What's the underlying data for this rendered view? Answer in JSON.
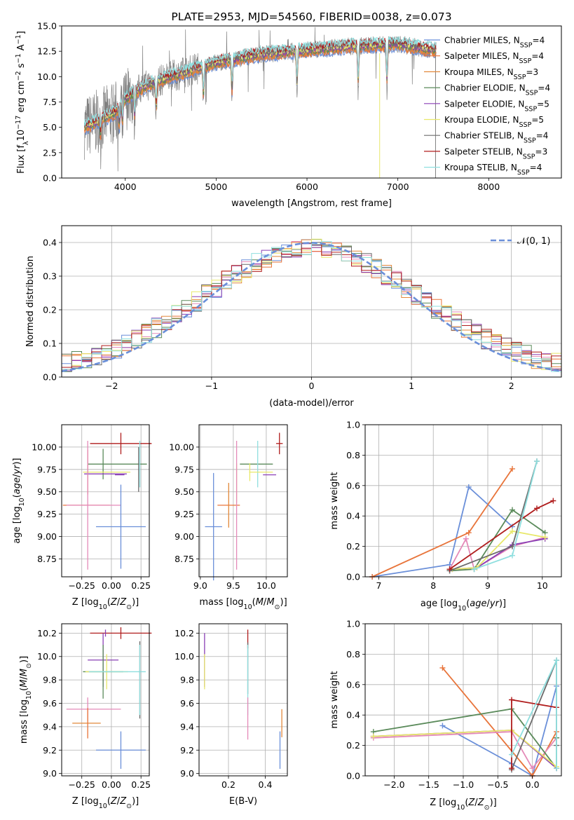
{
  "colors": {
    "chabrier_miles": "#6a8fd9",
    "salpeter_miles": "#e8743a",
    "kroupa_miles": "#e2883a",
    "chabrier_elodie": "#5a8a5a",
    "salpeter_elodie": "#8a3fb5",
    "kroupa_elodie": "#e8e86a",
    "chabrier_stelib": "#6b6b6b",
    "salpeter_stelib": "#b01d1d",
    "kroupa_stelib": "#8fdfdf",
    "data": "#808080",
    "normal": "#6a8fd9",
    "pink": "#e48ab8",
    "grid": "#b0b0b0"
  },
  "chart_data": [
    {
      "id": "spectrum",
      "type": "line",
      "title": "PLATE=2953, MJD=54560, FIBERID=0038, z=0.073",
      "xlabel": "wavelength [Angstrom, rest frame]",
      "ylabel": "Flux [f_λ 10^-17 erg cm^-2 s^-1 A^-1]",
      "xlim": [
        3300,
        8800
      ],
      "ylim": [
        0,
        15
      ],
      "xticks": [
        "4000",
        "5000",
        "6000",
        "7000",
        "8000"
      ],
      "yticks": [
        "0.0",
        "2.5",
        "5.0",
        "7.5",
        "10.0",
        "12.5",
        "15.0"
      ],
      "grid": false,
      "legend_position": "right",
      "data_range": [
        3550,
        7420
      ],
      "continuum_knots": [
        [
          3550,
          5.0
        ],
        [
          3700,
          5.6
        ],
        [
          3900,
          6.5
        ],
        [
          4000,
          7.8
        ],
        [
          4200,
          9.0
        ],
        [
          4500,
          10.0
        ],
        [
          5000,
          11.4
        ],
        [
          5500,
          12.2
        ],
        [
          6000,
          12.6
        ],
        [
          6500,
          13.0
        ],
        [
          7000,
          13.2
        ],
        [
          7420,
          12.6
        ]
      ],
      "legend": [
        {
          "name": "Chabrier MILES, N",
          "sub": "SSP",
          "tail": "=4",
          "color": "#6a8fd9"
        },
        {
          "name": "Salpeter MILES, N",
          "sub": "SSP",
          "tail": "=4",
          "color": "#e8743a"
        },
        {
          "name": "Kroupa MILES, N",
          "sub": "SSP",
          "tail": "=3",
          "color": "#e2883a"
        },
        {
          "name": "Chabrier ELODIE, N",
          "sub": "SSP",
          "tail": "=4",
          "color": "#5a8a5a"
        },
        {
          "name": "Salpeter ELODIE, N",
          "sub": "SSP",
          "tail": "=5",
          "color": "#8a3fb5"
        },
        {
          "name": "Kroupa ELODIE, N",
          "sub": "SSP",
          "tail": "=5",
          "color": "#e8e86a"
        },
        {
          "name": "Chabrier STELIB, N",
          "sub": "SSP",
          "tail": "=4",
          "color": "#6b6b6b"
        },
        {
          "name": "Salpeter STELIB, N",
          "sub": "SSP",
          "tail": "=3",
          "color": "#b01d1d"
        },
        {
          "name": "Kroupa STELIB, N",
          "sub": "SSP",
          "tail": "=4",
          "color": "#8fdfdf"
        }
      ]
    },
    {
      "id": "residuals",
      "type": "histogram",
      "xlabel": "(data-model)/error",
      "ylabel": "Normed distribution",
      "xlim": [
        -2.5,
        2.5
      ],
      "ylim": [
        0,
        0.45
      ],
      "xticks": [
        "−2",
        "−1",
        "0",
        "1",
        "2"
      ],
      "yticks": [
        "0.0",
        "0.1",
        "0.2",
        "0.3",
        "0.4"
      ],
      "grid": true,
      "legend_position": "top-right",
      "legend_label": "𝒩(0, 1)",
      "bin_width": 0.1,
      "series_colors": [
        "#6a8fd9",
        "#e48ab8",
        "#e8743a",
        "#e2883a",
        "#5a8a5a",
        "#8a3fb5",
        "#e8e86a",
        "#6b6b6b",
        "#b01d1d",
        "#8fdfdf"
      ]
    },
    {
      "id": "age_vs_Z",
      "type": "errorbar",
      "xlabel": "Z [log10(Z/Z⊙)]",
      "ylabel": "age [log10(age/yr)]",
      "xlim": [
        -0.42,
        0.32
      ],
      "ylim": [
        8.55,
        10.25
      ],
      "xticks": [
        -0.25,
        0.0,
        0.25
      ],
      "xtick_labels": [
        "−0.25",
        "0.00",
        "0.25"
      ],
      "yticks": [
        8.75,
        9.0,
        9.25,
        9.5,
        9.75,
        10.0
      ],
      "ytick_labels": [
        "8.75",
        "9.00",
        "9.25",
        "9.50",
        "9.75",
        "10.00"
      ],
      "points": [
        {
          "x": 0.08,
          "y": 10.04,
          "xerr": 0.26,
          "yerr": 0.12,
          "color": "#b01d1d"
        },
        {
          "x": 0.05,
          "y": 9.81,
          "xerr": 0.25,
          "yerr": 0.0,
          "color": "#5a8a5a"
        },
        {
          "x": -0.07,
          "y": 9.81,
          "xerr": 0.0,
          "yerr": 0.17,
          "color": "#5a8a5a"
        },
        {
          "x": -0.2,
          "y": 9.72,
          "xerr": 0.0,
          "yerr": 0.25,
          "color": "#e2883a"
        },
        {
          "x": -0.04,
          "y": 9.72,
          "xerr": 0.2,
          "yerr": 0.0,
          "color": "#e8e86a"
        },
        {
          "x": -0.05,
          "y": 9.7,
          "xerr": 0.18,
          "yerr": 0.0,
          "color": "#8a3fb5"
        },
        {
          "x": 0.07,
          "y": 9.69,
          "xerr": 0.04,
          "yerr": 0.0,
          "color": "#8a3fb5"
        },
        {
          "x": 0.24,
          "y": 9.81,
          "xerr": 0.0,
          "yerr": 0.26,
          "color": "#8fdfdf"
        },
        {
          "x": 0.23,
          "y": 9.75,
          "xerr": 0.0,
          "yerr": 0.25,
          "color": "#6b6b6b"
        },
        {
          "x": -0.21,
          "y": 9.35,
          "xerr": 0.2,
          "yerr": 0.0,
          "color": "#e8743a"
        },
        {
          "x": -0.15,
          "y": 9.35,
          "xerr": 0.23,
          "yerr": 0.0,
          "color": "#e48ab8"
        },
        {
          "x": -0.2,
          "y": 9.35,
          "xerr": 0.0,
          "yerr": 0.72,
          "color": "#e48ab8"
        },
        {
          "x": 0.08,
          "y": 9.11,
          "xerr": 0.21,
          "yerr": 0.47,
          "color": "#6a8fd9"
        }
      ]
    },
    {
      "id": "age_vs_mass",
      "type": "errorbar",
      "xlabel": "mass [log10(M/M⊙)]",
      "ylabel": "",
      "xlim": [
        8.98,
        10.32
      ],
      "ylim": [
        8.55,
        10.25
      ],
      "xticks": [
        9.0,
        9.5,
        10.0
      ],
      "xtick_labels": [
        "9.0",
        "9.5",
        "10.0"
      ],
      "yticks": [
        8.75,
        9.0,
        9.25,
        9.5,
        9.75,
        10.0
      ],
      "ytick_labels": [
        "8.75",
        "9.00",
        "9.25",
        "9.50",
        "9.75",
        "10.00"
      ],
      "points": [
        {
          "x": 10.2,
          "y": 10.04,
          "xerr": 0.05,
          "yerr": 0.12,
          "color": "#b01d1d"
        },
        {
          "x": 9.85,
          "y": 9.81,
          "xerr": 0.25,
          "yerr": 0.0,
          "color": "#5a8a5a"
        },
        {
          "x": 9.87,
          "y": 9.81,
          "xerr": 0.0,
          "yerr": 0.26,
          "color": "#8fdfdf"
        },
        {
          "x": 9.92,
          "y": 9.72,
          "xerr": 0.18,
          "yerr": 0.0,
          "color": "#e8e86a"
        },
        {
          "x": 10.05,
          "y": 9.69,
          "xerr": 0.1,
          "yerr": 0.0,
          "color": "#8a3fb5"
        },
        {
          "x": 9.75,
          "y": 9.72,
          "xerr": 0.0,
          "yerr": 0.1,
          "color": "#e8e86a"
        },
        {
          "x": 9.55,
          "y": 9.6,
          "xerr": 0.0,
          "yerr": 0.22,
          "color": "#e8e86a"
        },
        {
          "x": 9.43,
          "y": 9.35,
          "xerr": 0.17,
          "yerr": 0.0,
          "color": "#e8743a"
        },
        {
          "x": 9.43,
          "y": 9.35,
          "xerr": 0.0,
          "yerr": 0.25,
          "color": "#e2883a"
        },
        {
          "x": 9.55,
          "y": 9.35,
          "xerr": 0.0,
          "yerr": 0.72,
          "color": "#e48ab8"
        },
        {
          "x": 9.2,
          "y": 9.11,
          "xerr": 0.13,
          "yerr": 0.6,
          "color": "#6a8fd9"
        }
      ]
    },
    {
      "id": "massweight_vs_age",
      "type": "line",
      "xlabel": "age [log10(age/yr)]",
      "ylabel": "mass weight",
      "xlim": [
        6.75,
        10.35
      ],
      "ylim": [
        0,
        1.0
      ],
      "xticks": [
        7,
        8,
        9,
        10
      ],
      "xtick_labels": [
        "7",
        "8",
        "9",
        "10"
      ],
      "yticks": [
        0.0,
        0.2,
        0.4,
        0.6,
        0.8,
        1.0
      ],
      "ytick_labels": [
        "0.0",
        "0.2",
        "0.4",
        "0.6",
        "0.8",
        "1.0"
      ],
      "grid": true,
      "series": [
        {
          "color": "#6a8fd9",
          "x": [
            6.88,
            8.3,
            8.65,
            9.45
          ],
          "y": [
            0.0,
            0.08,
            0.59,
            0.33
          ]
        },
        {
          "color": "#e8743a",
          "x": [
            6.88,
            8.65,
            9.45
          ],
          "y": [
            0.0,
            0.29,
            0.71
          ]
        },
        {
          "color": "#e48ab8",
          "x": [
            8.3,
            8.6,
            8.75,
            9.45,
            10.05
          ],
          "y": [
            0.05,
            0.25,
            0.05,
            0.2,
            0.26
          ]
        },
        {
          "color": "#5a8a5a",
          "x": [
            8.3,
            8.75,
            9.45,
            10.05
          ],
          "y": [
            0.04,
            0.05,
            0.44,
            0.29
          ]
        },
        {
          "color": "#8a3fb5",
          "x": [
            8.35,
            8.8,
            9.45,
            10.05
          ],
          "y": [
            0.05,
            0.06,
            0.21,
            0.25
          ]
        },
        {
          "color": "#e8e86a",
          "x": [
            8.35,
            8.8,
            9.45,
            10.05
          ],
          "y": [
            0.05,
            0.06,
            0.3,
            0.26
          ]
        },
        {
          "color": "#6b6b6b",
          "x": [
            8.3,
            9.45,
            9.9
          ],
          "y": [
            0.04,
            0.2,
            0.76
          ]
        },
        {
          "color": "#b01d1d",
          "x": [
            8.3,
            9.9,
            10.2
          ],
          "y": [
            0.05,
            0.45,
            0.5
          ]
        },
        {
          "color": "#8fdfdf",
          "x": [
            8.75,
            9.45,
            9.9
          ],
          "y": [
            0.05,
            0.14,
            0.76
          ]
        }
      ]
    },
    {
      "id": "mass_vs_Z",
      "type": "errorbar",
      "xlabel": "Z [log10(Z/Z⊙)]",
      "ylabel": "mass [log10(M/M⊙)]",
      "xlim": [
        -0.42,
        0.32
      ],
      "ylim": [
        8.98,
        10.28
      ],
      "xticks": [
        -0.25,
        0.0,
        0.25
      ],
      "xtick_labels": [
        "−0.25",
        "0.00",
        "0.25"
      ],
      "yticks": [
        9.0,
        9.2,
        9.4,
        9.6,
        9.8,
        10.0,
        10.2
      ],
      "ytick_labels": [
        "9.0",
        "9.2",
        "9.4",
        "9.6",
        "9.8",
        "10.0",
        "10.2"
      ],
      "points": [
        {
          "x": 0.08,
          "y": 10.2,
          "xerr": 0.26,
          "yerr": 0.05,
          "color": "#b01d1d"
        },
        {
          "x": -0.05,
          "y": 10.2,
          "xerr": 0.0,
          "yerr": 0.0,
          "color": "#8a3fb5"
        },
        {
          "x": -0.07,
          "y": 9.97,
          "xerr": 0.13,
          "yerr": 0.23,
          "color": "#8a3fb5"
        },
        {
          "x": -0.07,
          "y": 9.87,
          "xerr": 0.17,
          "yerr": 0.23,
          "color": "#5a8a5a"
        },
        {
          "x": -0.04,
          "y": 9.87,
          "xerr": 0.18,
          "yerr": 0.15,
          "color": "#e8e86a"
        },
        {
          "x": 0.05,
          "y": 9.87,
          "xerr": 0.24,
          "yerr": 0.0,
          "color": "#8fdfdf"
        },
        {
          "x": 0.24,
          "y": 9.8,
          "xerr": 0.0,
          "yerr": 0.33,
          "color": "#6b6b6b"
        },
        {
          "x": 0.24,
          "y": 9.8,
          "xerr": 0.0,
          "yerr": 0.3,
          "color": "#8fdfdf"
        },
        {
          "x": -0.15,
          "y": 9.55,
          "xerr": 0.23,
          "yerr": 0.0,
          "color": "#e48ab8"
        },
        {
          "x": -0.2,
          "y": 9.55,
          "xerr": 0.0,
          "yerr": 0.1,
          "color": "#e48ab8"
        },
        {
          "x": -0.21,
          "y": 9.43,
          "xerr": 0.12,
          "yerr": 0.0,
          "color": "#e2883a"
        },
        {
          "x": -0.2,
          "y": 9.43,
          "xerr": 0.0,
          "yerr": 0.13,
          "color": "#e8743a"
        },
        {
          "x": 0.08,
          "y": 9.2,
          "xerr": 0.21,
          "yerr": 0.16,
          "color": "#6a8fd9"
        }
      ]
    },
    {
      "id": "mass_vs_EBV",
      "type": "errorbar",
      "xlabel": "E(B-V)",
      "ylabel": "",
      "xlim": [
        0.04,
        0.52
      ],
      "ylim": [
        8.98,
        10.28
      ],
      "xticks": [
        0.2,
        0.4
      ],
      "xtick_labels": [
        "0.2",
        "0.4"
      ],
      "yticks": [
        9.0,
        9.2,
        9.4,
        9.6,
        9.8,
        10.0,
        10.2
      ],
      "ytick_labels": [
        "9.0",
        "9.2",
        "9.4",
        "9.6",
        "9.8",
        "10.0",
        "10.2"
      ],
      "points": [
        {
          "x": 0.305,
          "y": 10.15,
          "xerr": 0.0,
          "yerr": 0.08,
          "color": "#b01d1d"
        },
        {
          "x": 0.305,
          "y": 9.9,
          "xerr": 0.0,
          "yerr": 0.22,
          "color": "#6b6b6b"
        },
        {
          "x": 0.305,
          "y": 9.8,
          "xerr": 0.0,
          "yerr": 0.3,
          "color": "#8fdfdf"
        },
        {
          "x": 0.305,
          "y": 9.47,
          "xerr": 0.0,
          "yerr": 0.18,
          "color": "#e48ab8"
        },
        {
          "x": 0.07,
          "y": 9.97,
          "xerr": 0.0,
          "yerr": 0.23,
          "color": "#8a3fb5"
        },
        {
          "x": 0.07,
          "y": 9.87,
          "xerr": 0.0,
          "yerr": 0.15,
          "color": "#e8e86a"
        },
        {
          "x": 0.49,
          "y": 9.43,
          "xerr": 0.0,
          "yerr": 0.12,
          "color": "#e2883a"
        },
        {
          "x": 0.48,
          "y": 9.2,
          "xerr": 0.0,
          "yerr": 0.16,
          "color": "#6a8fd9"
        }
      ]
    },
    {
      "id": "massweight_vs_Z",
      "type": "line",
      "xlabel": "Z [log10(Z/Z⊙)]",
      "ylabel": "mass weight",
      "xlim": [
        -2.42,
        0.42
      ],
      "ylim": [
        0,
        1.0
      ],
      "xticks": [
        -2.0,
        -1.5,
        -1.0,
        -0.5,
        0.0
      ],
      "xtick_labels": [
        "−2.0",
        "−1.5",
        "−1.0",
        "−0.5",
        "0.0"
      ],
      "yticks": [
        0.0,
        0.2,
        0.4,
        0.6,
        0.8,
        1.0
      ],
      "ytick_labels": [
        "0.0",
        "0.2",
        "0.4",
        "0.6",
        "0.8",
        "1.0"
      ],
      "grid": true,
      "series": [
        {
          "color": "#6a8fd9",
          "x": [
            -1.3,
            -0.3,
            0.0,
            0.35
          ],
          "y": [
            0.33,
            0.08,
            0.0,
            0.59
          ]
        },
        {
          "color": "#e8743a",
          "x": [
            -1.3,
            0.0,
            0.35
          ],
          "y": [
            0.71,
            0.0,
            0.29
          ]
        },
        {
          "color": "#e48ab8",
          "x": [
            -2.3,
            -0.3,
            0.0,
            0.35
          ],
          "y": [
            0.25,
            0.29,
            0.05,
            0.25
          ]
        },
        {
          "color": "#5a8a5a",
          "x": [
            -2.3,
            -0.3,
            0.35,
            0.35
          ],
          "y": [
            0.29,
            0.44,
            0.05,
            0.25
          ]
        },
        {
          "color": "#8a3fb5",
          "x": [
            -2.3,
            -0.3,
            0.35
          ],
          "y": [
            0.26,
            0.3,
            0.05
          ]
        },
        {
          "color": "#e8e86a",
          "x": [
            -2.3,
            -0.3,
            0.35
          ],
          "y": [
            0.26,
            0.3,
            0.06
          ]
        },
        {
          "color": "#6b6b6b",
          "x": [
            -0.3,
            0.35,
            0.35
          ],
          "y": [
            0.04,
            0.76,
            0.2
          ]
        },
        {
          "color": "#b01d1d",
          "x": [
            -0.3,
            -0.3,
            0.35
          ],
          "y": [
            0.05,
            0.5,
            0.45
          ]
        },
        {
          "color": "#8fdfdf",
          "x": [
            -0.3,
            0.35,
            0.35
          ],
          "y": [
            0.14,
            0.76,
            0.05
          ]
        }
      ]
    }
  ]
}
